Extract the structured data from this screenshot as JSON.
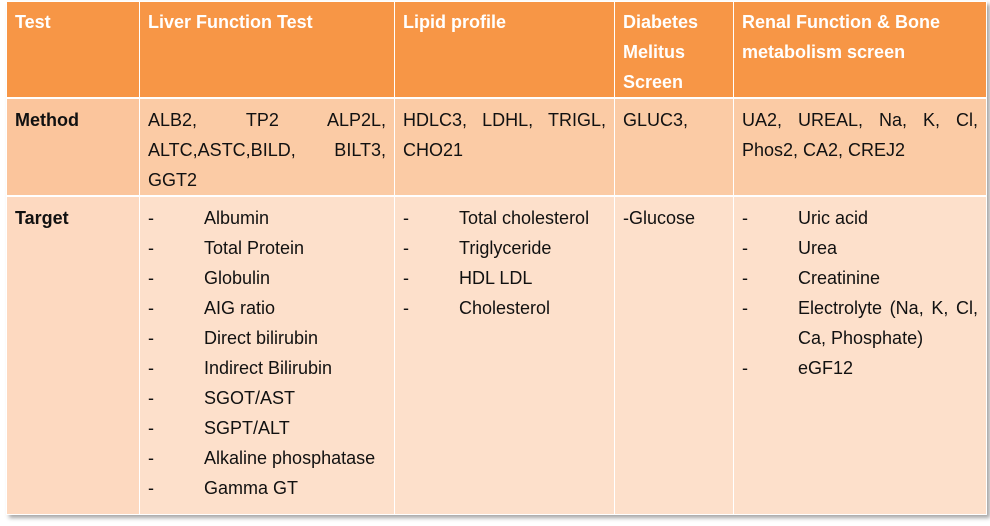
{
  "headers": {
    "test": "Test",
    "liver": "Liver Function Test",
    "lipid": "Lipid profile",
    "diabetes": "Diabetes Melitus Screen",
    "renal": "Renal Function & Bone metabolism screen"
  },
  "method": {
    "label": "Method",
    "liver": "ALB2, TP2 ALP2L, ALTC,ASTC,BILD, BILT3, GGT2",
    "lipid": "HDLC3, LDHL, TRIGL, CHO21",
    "diabetes": "GLUC3,",
    "renal": "UA2, UREAL, Na, K, Cl, Phos2, CA2, CREJ2"
  },
  "target": {
    "label": "Target",
    "bullet": "-",
    "liver": [
      "Albumin",
      "Total Protein",
      "Globulin",
      "AIG ratio",
      "Direct bilirubin",
      "Indirect Bilirubin",
      "SGOT/AST",
      "SGPT/ALT",
      "Alkaline phosphatase",
      "Gamma GT"
    ],
    "lipid": [
      "Total cholesterol",
      "Triglyceride",
      "HDL LDL",
      "Cholesterol"
    ],
    "diabetes": "-Glucose",
    "renal": [
      "Uric acid",
      "Urea",
      "Creatinine",
      "Electrolyte (Na, K, Cl, Ca, Phosphate)",
      "eGF12"
    ]
  },
  "colors": {
    "header": "#f79646",
    "method_row": "#fbcba5",
    "target_row": "#fde0cb"
  }
}
